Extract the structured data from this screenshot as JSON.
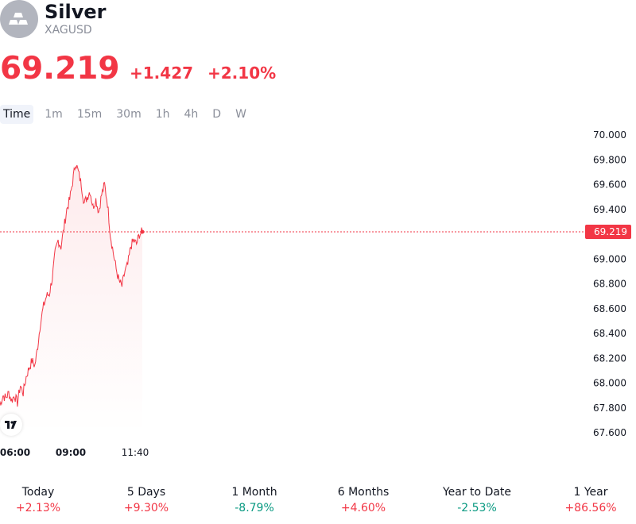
{
  "header": {
    "name": "Silver",
    "ticker": "XAGUSD",
    "logo_icon": "silver-bars-icon"
  },
  "quote": {
    "price": "69.219",
    "change": "+1.427",
    "change_percent": "+2.10%",
    "color": "#f23645"
  },
  "tabs": [
    {
      "label": "Time",
      "active": true
    },
    {
      "label": "1m",
      "active": false
    },
    {
      "label": "15m",
      "active": false
    },
    {
      "label": "30m",
      "active": false
    },
    {
      "label": "1h",
      "active": false
    },
    {
      "label": "4h",
      "active": false
    },
    {
      "label": "D",
      "active": false
    },
    {
      "label": "W",
      "active": false
    }
  ],
  "chart_data": {
    "type": "line",
    "x_labels": [
      "06:00",
      "09:00",
      "11:40"
    ],
    "y_ticks": [
      "70.000",
      "69.800",
      "69.600",
      "69.400",
      "69.000",
      "68.800",
      "68.600",
      "68.400",
      "68.200",
      "68.000",
      "67.800",
      "67.600"
    ],
    "ylim": [
      67.55,
      70.05
    ],
    "last_value_label": "69.219",
    "last_value": 69.219,
    "line_color": "#f23645",
    "series": [
      {
        "values": [
          67.82,
          67.9,
          67.88,
          67.92,
          67.86,
          67.9,
          67.84,
          67.98,
          67.92,
          68.05,
          68.12,
          68.18,
          68.14,
          68.3,
          68.5,
          68.62,
          68.7,
          68.72,
          68.85,
          69.05,
          69.15,
          69.1,
          69.25,
          69.4,
          69.48,
          69.62,
          69.78,
          69.7,
          69.6,
          69.45,
          69.5,
          69.55,
          69.42,
          69.48,
          69.38,
          69.52,
          69.6,
          69.45,
          69.2,
          69.05,
          68.92,
          68.82,
          68.78,
          68.9,
          68.95,
          69.1,
          69.15,
          69.12,
          69.2,
          69.219
        ]
      }
    ]
  },
  "performance": [
    {
      "label": "Today",
      "value": "+2.13%",
      "color": "#f23645"
    },
    {
      "label": "5 Days",
      "value": "+9.30%",
      "color": "#f23645"
    },
    {
      "label": "1 Month",
      "value": "-8.79%",
      "color": "#089981"
    },
    {
      "label": "6 Months",
      "value": "+4.60%",
      "color": "#f23645"
    },
    {
      "label": "Year to Date",
      "value": "-2.53%",
      "color": "#089981"
    },
    {
      "label": "1 Year",
      "value": "+86.56%",
      "color": "#f23645"
    }
  ]
}
